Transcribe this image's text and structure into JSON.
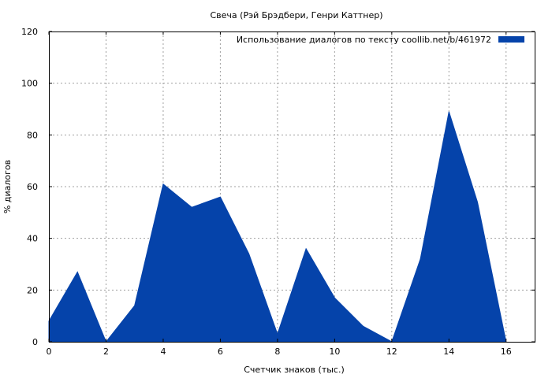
{
  "chart_data": {
    "type": "area",
    "title": "Свеча (Рэй Брэдбери, Генри Каттнер)",
    "xlabel": "Счетчик знаков (тыс.)",
    "ylabel": "% диалогов",
    "xlim": [
      0,
      17
    ],
    "ylim": [
      0,
      120
    ],
    "xticks": [
      0,
      2,
      4,
      6,
      8,
      10,
      12,
      14,
      16
    ],
    "yticks": [
      0,
      20,
      40,
      60,
      80,
      100,
      120
    ],
    "grid": true,
    "legend_position": "top-right",
    "series": [
      {
        "name": "Использование диалогов по тексту  coollib.net/b/461972",
        "color": "#0543aa",
        "x": [
          0,
          1,
          2,
          3,
          4,
          5,
          6,
          7,
          8,
          9,
          10,
          11,
          12,
          13,
          14,
          15,
          16
        ],
        "y": [
          8,
          27,
          0,
          14,
          61,
          52,
          56,
          34,
          3,
          36,
          17,
          6,
          0,
          32,
          89,
          54,
          0
        ]
      }
    ]
  }
}
